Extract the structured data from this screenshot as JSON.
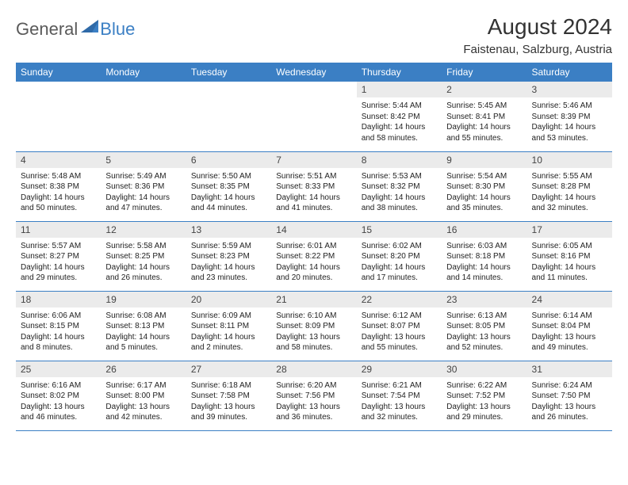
{
  "brand": {
    "general": "General",
    "blue": "Blue",
    "logo_color": "#3b7fc4"
  },
  "header": {
    "month_title": "August 2024",
    "location": "Faistenau, Salzburg, Austria"
  },
  "calendar": {
    "header_bg": "#3b7fc4",
    "header_fg": "#ffffff",
    "daynum_bg": "#ebebeb",
    "border_color": "#3b7fc4",
    "day_labels": [
      "Sunday",
      "Monday",
      "Tuesday",
      "Wednesday",
      "Thursday",
      "Friday",
      "Saturday"
    ],
    "weeks": [
      [
        {
          "empty": true
        },
        {
          "empty": true
        },
        {
          "empty": true
        },
        {
          "empty": true
        },
        {
          "num": "1",
          "sunrise": "Sunrise: 5:44 AM",
          "sunset": "Sunset: 8:42 PM",
          "daylight": "Daylight: 14 hours and 58 minutes."
        },
        {
          "num": "2",
          "sunrise": "Sunrise: 5:45 AM",
          "sunset": "Sunset: 8:41 PM",
          "daylight": "Daylight: 14 hours and 55 minutes."
        },
        {
          "num": "3",
          "sunrise": "Sunrise: 5:46 AM",
          "sunset": "Sunset: 8:39 PM",
          "daylight": "Daylight: 14 hours and 53 minutes."
        }
      ],
      [
        {
          "num": "4",
          "sunrise": "Sunrise: 5:48 AM",
          "sunset": "Sunset: 8:38 PM",
          "daylight": "Daylight: 14 hours and 50 minutes."
        },
        {
          "num": "5",
          "sunrise": "Sunrise: 5:49 AM",
          "sunset": "Sunset: 8:36 PM",
          "daylight": "Daylight: 14 hours and 47 minutes."
        },
        {
          "num": "6",
          "sunrise": "Sunrise: 5:50 AM",
          "sunset": "Sunset: 8:35 PM",
          "daylight": "Daylight: 14 hours and 44 minutes."
        },
        {
          "num": "7",
          "sunrise": "Sunrise: 5:51 AM",
          "sunset": "Sunset: 8:33 PM",
          "daylight": "Daylight: 14 hours and 41 minutes."
        },
        {
          "num": "8",
          "sunrise": "Sunrise: 5:53 AM",
          "sunset": "Sunset: 8:32 PM",
          "daylight": "Daylight: 14 hours and 38 minutes."
        },
        {
          "num": "9",
          "sunrise": "Sunrise: 5:54 AM",
          "sunset": "Sunset: 8:30 PM",
          "daylight": "Daylight: 14 hours and 35 minutes."
        },
        {
          "num": "10",
          "sunrise": "Sunrise: 5:55 AM",
          "sunset": "Sunset: 8:28 PM",
          "daylight": "Daylight: 14 hours and 32 minutes."
        }
      ],
      [
        {
          "num": "11",
          "sunrise": "Sunrise: 5:57 AM",
          "sunset": "Sunset: 8:27 PM",
          "daylight": "Daylight: 14 hours and 29 minutes."
        },
        {
          "num": "12",
          "sunrise": "Sunrise: 5:58 AM",
          "sunset": "Sunset: 8:25 PM",
          "daylight": "Daylight: 14 hours and 26 minutes."
        },
        {
          "num": "13",
          "sunrise": "Sunrise: 5:59 AM",
          "sunset": "Sunset: 8:23 PM",
          "daylight": "Daylight: 14 hours and 23 minutes."
        },
        {
          "num": "14",
          "sunrise": "Sunrise: 6:01 AM",
          "sunset": "Sunset: 8:22 PM",
          "daylight": "Daylight: 14 hours and 20 minutes."
        },
        {
          "num": "15",
          "sunrise": "Sunrise: 6:02 AM",
          "sunset": "Sunset: 8:20 PM",
          "daylight": "Daylight: 14 hours and 17 minutes."
        },
        {
          "num": "16",
          "sunrise": "Sunrise: 6:03 AM",
          "sunset": "Sunset: 8:18 PM",
          "daylight": "Daylight: 14 hours and 14 minutes."
        },
        {
          "num": "17",
          "sunrise": "Sunrise: 6:05 AM",
          "sunset": "Sunset: 8:16 PM",
          "daylight": "Daylight: 14 hours and 11 minutes."
        }
      ],
      [
        {
          "num": "18",
          "sunrise": "Sunrise: 6:06 AM",
          "sunset": "Sunset: 8:15 PM",
          "daylight": "Daylight: 14 hours and 8 minutes."
        },
        {
          "num": "19",
          "sunrise": "Sunrise: 6:08 AM",
          "sunset": "Sunset: 8:13 PM",
          "daylight": "Daylight: 14 hours and 5 minutes."
        },
        {
          "num": "20",
          "sunrise": "Sunrise: 6:09 AM",
          "sunset": "Sunset: 8:11 PM",
          "daylight": "Daylight: 14 hours and 2 minutes."
        },
        {
          "num": "21",
          "sunrise": "Sunrise: 6:10 AM",
          "sunset": "Sunset: 8:09 PM",
          "daylight": "Daylight: 13 hours and 58 minutes."
        },
        {
          "num": "22",
          "sunrise": "Sunrise: 6:12 AM",
          "sunset": "Sunset: 8:07 PM",
          "daylight": "Daylight: 13 hours and 55 minutes."
        },
        {
          "num": "23",
          "sunrise": "Sunrise: 6:13 AM",
          "sunset": "Sunset: 8:05 PM",
          "daylight": "Daylight: 13 hours and 52 minutes."
        },
        {
          "num": "24",
          "sunrise": "Sunrise: 6:14 AM",
          "sunset": "Sunset: 8:04 PM",
          "daylight": "Daylight: 13 hours and 49 minutes."
        }
      ],
      [
        {
          "num": "25",
          "sunrise": "Sunrise: 6:16 AM",
          "sunset": "Sunset: 8:02 PM",
          "daylight": "Daylight: 13 hours and 46 minutes."
        },
        {
          "num": "26",
          "sunrise": "Sunrise: 6:17 AM",
          "sunset": "Sunset: 8:00 PM",
          "daylight": "Daylight: 13 hours and 42 minutes."
        },
        {
          "num": "27",
          "sunrise": "Sunrise: 6:18 AM",
          "sunset": "Sunset: 7:58 PM",
          "daylight": "Daylight: 13 hours and 39 minutes."
        },
        {
          "num": "28",
          "sunrise": "Sunrise: 6:20 AM",
          "sunset": "Sunset: 7:56 PM",
          "daylight": "Daylight: 13 hours and 36 minutes."
        },
        {
          "num": "29",
          "sunrise": "Sunrise: 6:21 AM",
          "sunset": "Sunset: 7:54 PM",
          "daylight": "Daylight: 13 hours and 32 minutes."
        },
        {
          "num": "30",
          "sunrise": "Sunrise: 6:22 AM",
          "sunset": "Sunset: 7:52 PM",
          "daylight": "Daylight: 13 hours and 29 minutes."
        },
        {
          "num": "31",
          "sunrise": "Sunrise: 6:24 AM",
          "sunset": "Sunset: 7:50 PM",
          "daylight": "Daylight: 13 hours and 26 minutes."
        }
      ]
    ]
  }
}
